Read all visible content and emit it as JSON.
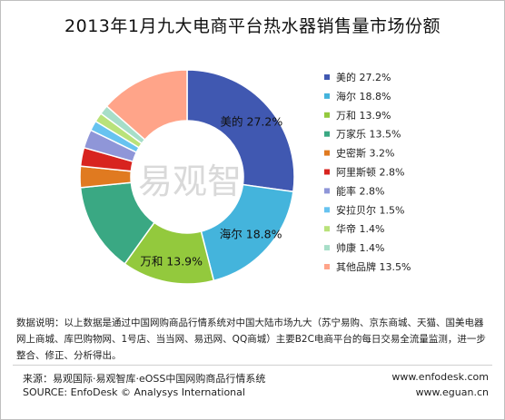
{
  "title": "2013年1月九大电商平台热水器销售量市场份额",
  "chart_data": {
    "type": "pie",
    "title": "2013年1月九大电商平台热水器销售量市场份额",
    "series": [
      {
        "name": "美的",
        "value": 27.2,
        "label": "27.2%",
        "color": "#4058b1"
      },
      {
        "name": "海尔",
        "value": 18.8,
        "label": "18.8%",
        "color": "#44b4dc"
      },
      {
        "name": "万和",
        "value": 13.9,
        "label": "13.9%",
        "color": "#93c93d"
      },
      {
        "name": "万家乐",
        "value": 13.5,
        "label": "13.5%",
        "color": "#3aa883"
      },
      {
        "name": "史密斯",
        "value": 3.2,
        "label": "3.2%",
        "color": "#e07a20"
      },
      {
        "name": "阿里斯顿",
        "value": 2.8,
        "label": "2.8%",
        "color": "#d8241f"
      },
      {
        "name": "能率",
        "value": 2.8,
        "label": "2.8%",
        "color": "#8f96d8"
      },
      {
        "name": "安拉贝尔",
        "value": 1.5,
        "label": "1.5%",
        "color": "#67c3f0"
      },
      {
        "name": "华帝",
        "value": 1.4,
        "label": "1.4%",
        "color": "#b9e27a"
      },
      {
        "name": "帅康",
        "value": 1.4,
        "label": "1.4%",
        "color": "#a7dec8"
      },
      {
        "name": "其他品牌",
        "value": 13.5,
        "label": "13.5%",
        "color": "#ffa489"
      }
    ],
    "slice_labels": [
      {
        "name": "美的",
        "label": "27.2%"
      },
      {
        "name": "海尔",
        "label": "18.8%"
      },
      {
        "name": "万和",
        "label": "13.9%"
      }
    ],
    "donut": true,
    "legend_position": "right"
  },
  "watermark": "易观智库",
  "note": "数据说明：以上数据是通过中国网购商品行情系统对中国大陆市场九大（苏宁易购、京东商城、天猫、国美电器网上商城、库巴购物网、1号店、当当网、易迅网、QQ商城）主要B2C电商平台的每日交易全流量监测，进一步整合、修正、分析得出。",
  "source_cn": "来源：易观国际·易观智库·eOSS中国网购商品行情系统",
  "source_en": "SOURCE: EnfoDesk © Analysys International",
  "url1": "www.enfodesk.com",
  "url2": "www.eguan.cn"
}
